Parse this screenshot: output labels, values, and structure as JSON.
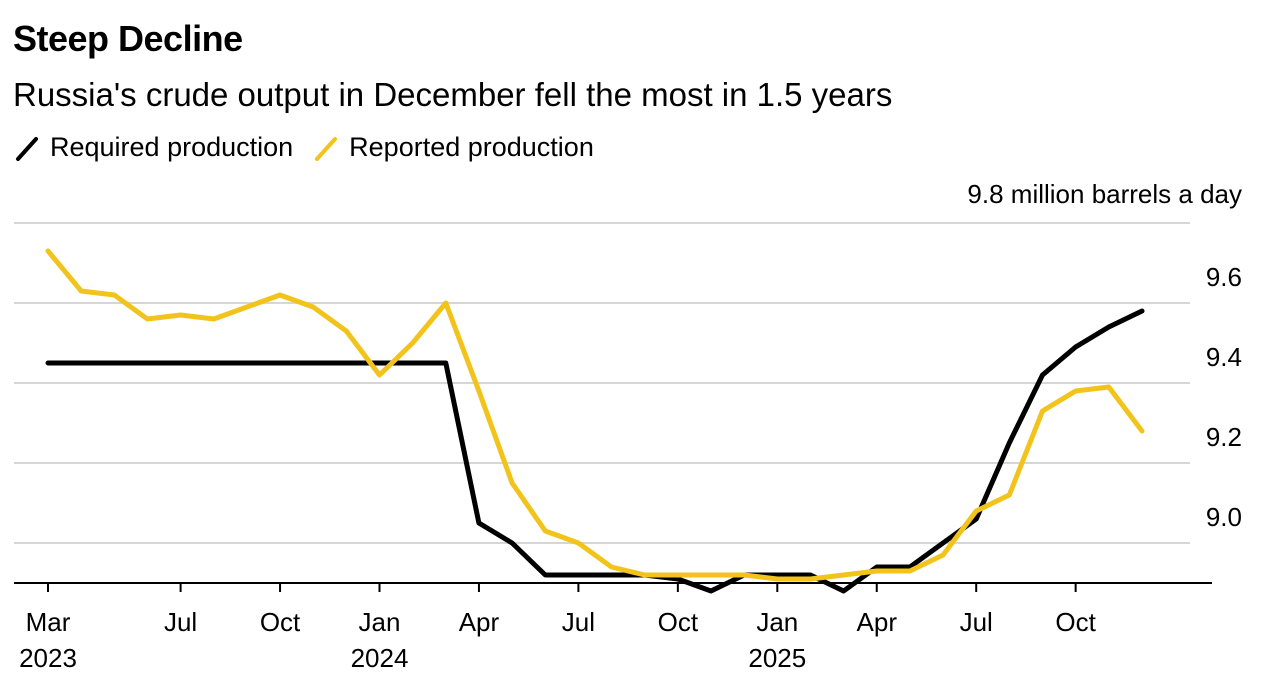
{
  "title": "Steep Decline",
  "subtitle": "Russia's crude output in December fell the most in 1.5 years",
  "unit_label": "9.8 million barrels a day",
  "legend": [
    {
      "label": "Required production",
      "color": "#000000"
    },
    {
      "label": "Reported production",
      "color": "#f2c31b"
    }
  ],
  "chart_data": {
    "type": "line",
    "x": [
      "2023-03",
      "2023-04",
      "2023-05",
      "2023-06",
      "2023-07",
      "2023-08",
      "2023-09",
      "2023-10",
      "2023-11",
      "2023-12",
      "2024-01",
      "2024-02",
      "2024-03",
      "2024-04",
      "2024-05",
      "2024-06",
      "2024-07",
      "2024-08",
      "2024-09",
      "2024-10",
      "2024-11",
      "2024-12",
      "2025-01",
      "2025-02",
      "2025-03",
      "2025-04",
      "2025-05",
      "2025-06",
      "2025-07",
      "2025-08",
      "2025-09",
      "2025-10",
      "2025-11",
      "2025-12"
    ],
    "series": [
      {
        "name": "Required production",
        "color": "#000000",
        "values": [
          9.45,
          9.45,
          9.45,
          9.45,
          9.45,
          9.45,
          9.45,
          9.45,
          9.45,
          9.45,
          9.45,
          9.45,
          9.45,
          9.05,
          9.0,
          8.92,
          8.92,
          8.92,
          8.92,
          8.91,
          8.88,
          8.92,
          8.92,
          8.92,
          8.88,
          8.94,
          8.94,
          9.0,
          9.06,
          9.25,
          9.42,
          9.49,
          9.54,
          9.58
        ]
      },
      {
        "name": "Reported production",
        "color": "#f2c31b",
        "values": [
          9.73,
          9.63,
          9.62,
          9.56,
          9.57,
          9.56,
          9.59,
          9.62,
          9.59,
          9.53,
          9.42,
          9.5,
          9.6,
          9.38,
          9.15,
          9.03,
          9.0,
          8.94,
          8.92,
          8.92,
          8.92,
          8.92,
          8.91,
          8.91,
          8.92,
          8.93,
          8.93,
          8.97,
          9.08,
          9.12,
          9.33,
          9.38,
          9.39,
          9.28
        ]
      }
    ],
    "ylim": [
      8.85,
      9.8
    ],
    "yticks": [
      "9.0",
      "9.2",
      "9.4",
      "9.6"
    ],
    "ytick_values": [
      9.0,
      9.2,
      9.4,
      9.6,
      9.8
    ],
    "xticks": [
      {
        "at": "2023-03",
        "label": "Mar",
        "year": "2023"
      },
      {
        "at": "2023-07",
        "label": "Jul",
        "year": ""
      },
      {
        "at": "2023-10",
        "label": "Oct",
        "year": ""
      },
      {
        "at": "2024-01",
        "label": "Jan",
        "year": "2024"
      },
      {
        "at": "2024-04",
        "label": "Apr",
        "year": ""
      },
      {
        "at": "2024-07",
        "label": "Jul",
        "year": ""
      },
      {
        "at": "2024-10",
        "label": "Oct",
        "year": ""
      },
      {
        "at": "2025-01",
        "label": "Jan",
        "year": "2025"
      },
      {
        "at": "2025-04",
        "label": "Apr",
        "year": ""
      },
      {
        "at": "2025-07",
        "label": "Jul",
        "year": ""
      },
      {
        "at": "2025-10",
        "label": "Oct",
        "year": ""
      }
    ],
    "grid": true
  }
}
